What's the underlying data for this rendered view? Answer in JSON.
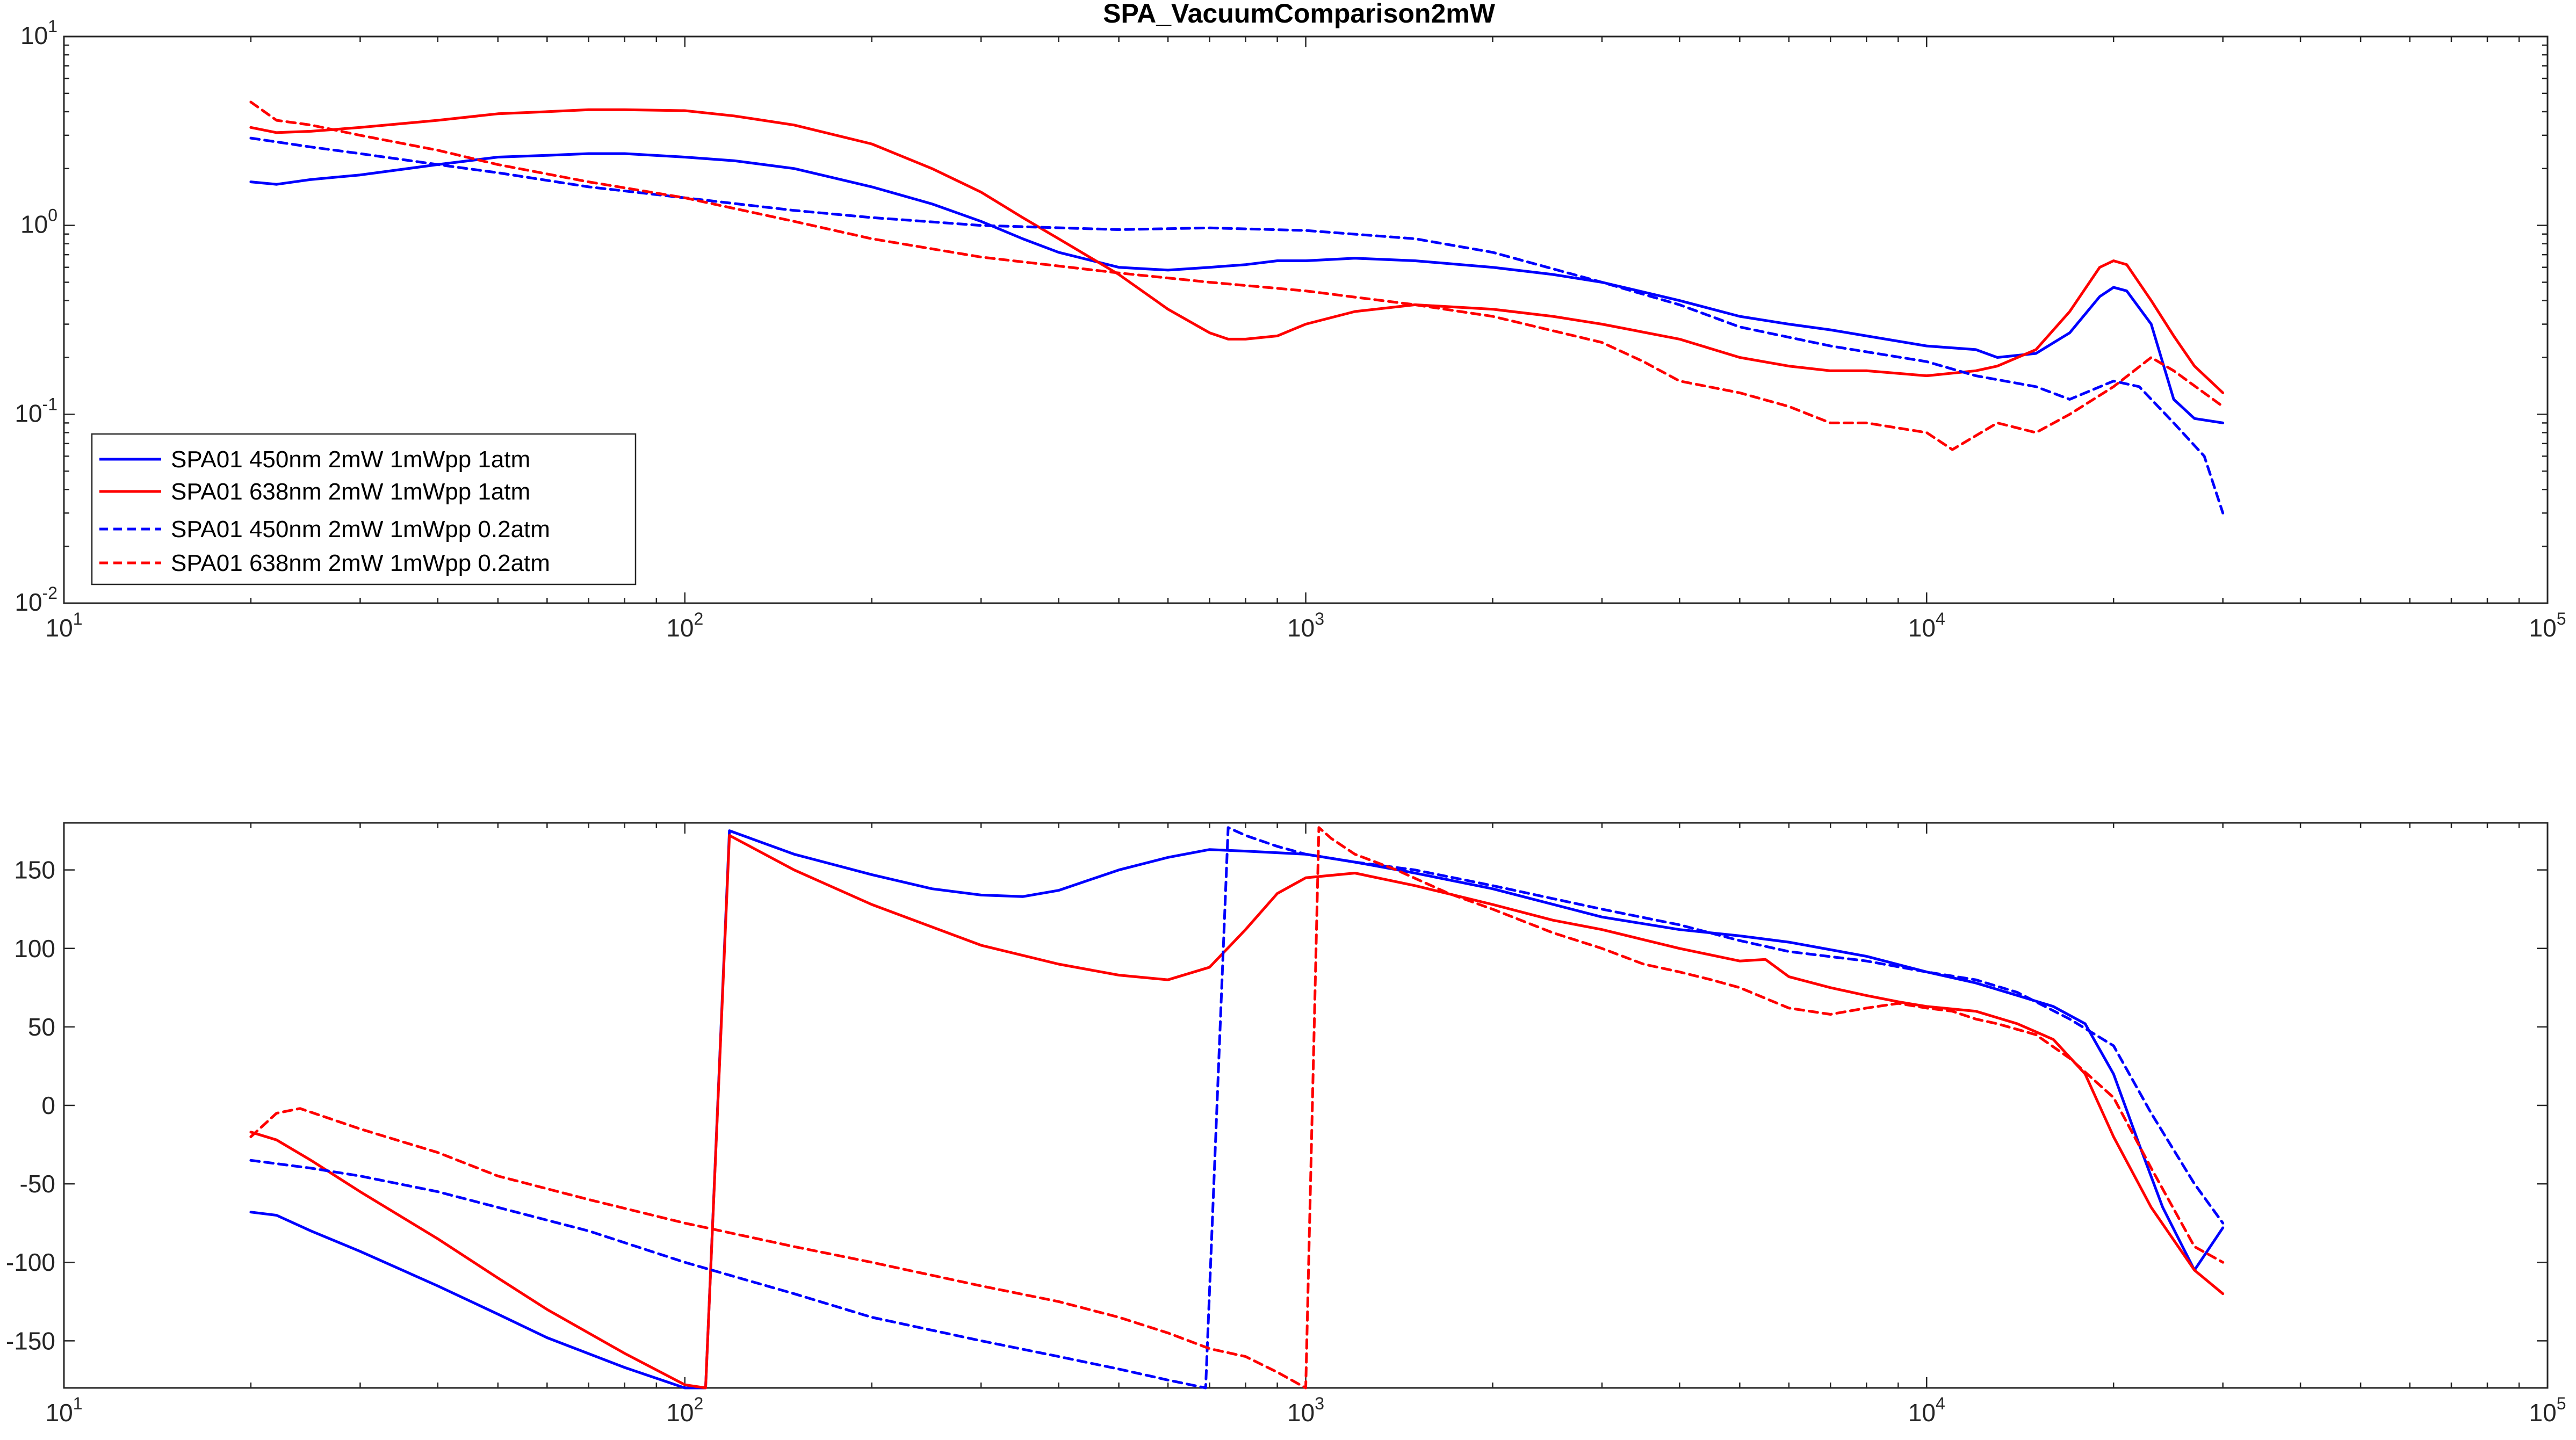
{
  "colors": {
    "blue": "#0000ff",
    "red": "#ff0000",
    "axis": "#262626"
  },
  "chart_data": [
    {
      "type": "line",
      "title": "SPA_VacuumComparison2mW",
      "xlabel": "",
      "ylabel": "",
      "xscale": "log",
      "yscale": "log",
      "xlim": [
        10,
        100000
      ],
      "ylim": [
        0.01,
        10
      ],
      "x_ticks": [
        {
          "base": "10",
          "exp": "1"
        },
        {
          "base": "10",
          "exp": "2"
        },
        {
          "base": "10",
          "exp": "3"
        },
        {
          "base": "10",
          "exp": "4"
        },
        {
          "base": "10",
          "exp": "5"
        }
      ],
      "y_ticks": [
        {
          "base": "10",
          "exp": "-2"
        },
        {
          "base": "10",
          "exp": "-1"
        },
        {
          "base": "10",
          "exp": "0"
        },
        {
          "base": "10",
          "exp": "1"
        }
      ],
      "grid": false,
      "legend_position": "bottom-left",
      "series": [
        {
          "name": "SPA01 450nm 2mW 1mWpp 1atm",
          "color": "#0000ff",
          "style": "solid",
          "x": [
            20,
            22,
            25,
            30,
            40,
            50,
            60,
            70,
            80,
            100,
            120,
            150,
            200,
            250,
            300,
            350,
            400,
            500,
            600,
            700,
            800,
            900,
            1000,
            1200,
            1500,
            2000,
            2500,
            3000,
            4000,
            5000,
            6000,
            7000,
            8000,
            10000,
            12000,
            13000,
            15000,
            17000,
            19000,
            20000,
            21000,
            23000,
            25000,
            27000,
            30000
          ],
          "y": [
            1.7,
            1.65,
            1.75,
            1.85,
            2.1,
            2.3,
            2.35,
            2.4,
            2.4,
            2.3,
            2.2,
            2.0,
            1.6,
            1.3,
            1.05,
            0.85,
            0.72,
            0.6,
            0.58,
            0.6,
            0.62,
            0.65,
            0.65,
            0.67,
            0.65,
            0.6,
            0.55,
            0.5,
            0.4,
            0.33,
            0.3,
            0.28,
            0.26,
            0.23,
            0.22,
            0.2,
            0.21,
            0.27,
            0.42,
            0.47,
            0.45,
            0.3,
            0.12,
            0.095,
            0.09
          ]
        },
        {
          "name": "SPA01 638nm 2mW 1mWpp 1atm",
          "color": "#ff0000",
          "style": "solid",
          "x": [
            20,
            22,
            25,
            30,
            40,
            50,
            60,
            70,
            80,
            100,
            120,
            150,
            200,
            250,
            300,
            350,
            400,
            500,
            600,
            700,
            750,
            800,
            900,
            1000,
            1200,
            1500,
            2000,
            2500,
            3000,
            4000,
            5000,
            6000,
            7000,
            8000,
            10000,
            12000,
            13000,
            15000,
            17000,
            19000,
            20000,
            21000,
            23000,
            25000,
            27000,
            30000
          ],
          "y": [
            3.3,
            3.1,
            3.15,
            3.3,
            3.6,
            3.9,
            4.0,
            4.1,
            4.1,
            4.05,
            3.8,
            3.4,
            2.7,
            2.0,
            1.5,
            1.1,
            0.85,
            0.55,
            0.36,
            0.27,
            0.25,
            0.25,
            0.26,
            0.3,
            0.35,
            0.38,
            0.36,
            0.33,
            0.3,
            0.25,
            0.2,
            0.18,
            0.17,
            0.17,
            0.16,
            0.17,
            0.18,
            0.22,
            0.35,
            0.6,
            0.65,
            0.62,
            0.4,
            0.26,
            0.18,
            0.13
          ]
        },
        {
          "name": "SPA01 450nm 2mW 1mWpp 0.2atm",
          "color": "#0000ff",
          "style": "dashed",
          "x": [
            20,
            25,
            30,
            40,
            50,
            70,
            100,
            150,
            200,
            300,
            500,
            700,
            1000,
            1500,
            2000,
            3000,
            4000,
            5000,
            7000,
            10000,
            12000,
            15000,
            17000,
            20000,
            22000,
            25000,
            28000,
            30000
          ],
          "y": [
            2.9,
            2.6,
            2.4,
            2.1,
            1.9,
            1.6,
            1.4,
            1.2,
            1.1,
            1.0,
            0.95,
            0.97,
            0.94,
            0.85,
            0.72,
            0.5,
            0.38,
            0.29,
            0.23,
            0.19,
            0.16,
            0.14,
            0.12,
            0.15,
            0.14,
            0.09,
            0.06,
            0.03
          ]
        },
        {
          "name": "SPA01 638nm 2mW 1mWpp 0.2atm",
          "color": "#ff0000",
          "style": "dashed",
          "x": [
            20,
            22,
            25,
            30,
            40,
            50,
            70,
            100,
            150,
            200,
            300,
            500,
            700,
            1000,
            1500,
            2000,
            3000,
            3500,
            4000,
            5000,
            6000,
            7000,
            8000,
            10000,
            11000,
            13000,
            15000,
            17000,
            20000,
            23000,
            25000,
            30000
          ],
          "y": [
            4.5,
            3.6,
            3.4,
            3.0,
            2.5,
            2.1,
            1.7,
            1.4,
            1.05,
            0.85,
            0.68,
            0.56,
            0.5,
            0.45,
            0.38,
            0.33,
            0.24,
            0.19,
            0.15,
            0.13,
            0.11,
            0.09,
            0.09,
            0.08,
            0.065,
            0.09,
            0.08,
            0.1,
            0.14,
            0.2,
            0.17,
            0.11
          ]
        }
      ]
    },
    {
      "type": "line",
      "title": "",
      "xlabel": "",
      "ylabel": "",
      "xscale": "log",
      "yscale": "linear",
      "xlim": [
        10,
        100000
      ],
      "ylim": [
        -180,
        180
      ],
      "x_ticks": [
        {
          "base": "10",
          "exp": "1"
        },
        {
          "base": "10",
          "exp": "2"
        },
        {
          "base": "10",
          "exp": "3"
        },
        {
          "base": "10",
          "exp": "4"
        },
        {
          "base": "10",
          "exp": "5"
        }
      ],
      "y_ticks": [
        "-150",
        "-100",
        "-50",
        "0",
        "50",
        "100",
        "150"
      ],
      "y_tick_values": [
        -150,
        -100,
        -50,
        0,
        50,
        100,
        150
      ],
      "grid": false,
      "series": [
        {
          "name": "SPA01 450nm 2mW 1mWpp 1atm",
          "color": "#0000ff",
          "style": "solid",
          "x": [
            20,
            22,
            25,
            30,
            40,
            50,
            60,
            80,
            100,
            108,
            118,
            150,
            200,
            250,
            300,
            350,
            400,
            500,
            600,
            700,
            800,
            1000,
            1200,
            1500,
            2000,
            3000,
            4000,
            5000,
            6000,
            8000,
            10000,
            12000,
            14000,
            16000,
            18000,
            20000,
            22000,
            24000,
            27000,
            30000
          ],
          "y": [
            -68,
            -70,
            -80,
            -93,
            -115,
            -133,
            -148,
            -167,
            -180,
            -180,
            175,
            160,
            147,
            138,
            134,
            133,
            137,
            150,
            158,
            163,
            162,
            160,
            155,
            148,
            138,
            120,
            112,
            108,
            104,
            95,
            85,
            78,
            70,
            63,
            52,
            20,
            -25,
            -65,
            -105,
            -78
          ]
        },
        {
          "name": "SPA01 638nm 2mW 1mWpp 1atm",
          "color": "#ff0000",
          "style": "solid",
          "x": [
            20,
            22,
            25,
            30,
            40,
            50,
            60,
            80,
            100,
            108,
            118,
            150,
            200,
            300,
            400,
            500,
            600,
            700,
            800,
            900,
            1000,
            1200,
            1500,
            2000,
            2500,
            3000,
            4000,
            5000,
            5500,
            6000,
            7000,
            8000,
            9000,
            10000,
            12000,
            14000,
            16000,
            18000,
            20000,
            23000,
            27000,
            30000
          ],
          "y": [
            -17,
            -22,
            -35,
            -55,
            -85,
            -110,
            -130,
            -158,
            -178,
            -180,
            172,
            150,
            128,
            102,
            90,
            83,
            80,
            88,
            112,
            135,
            145,
            148,
            140,
            128,
            118,
            112,
            100,
            92,
            93,
            82,
            75,
            70,
            66,
            63,
            60,
            52,
            42,
            20,
            -20,
            -65,
            -105,
            -120
          ]
        },
        {
          "name": "SPA01 450nm 2mW 1mWpp 0.2atm",
          "color": "#0000ff",
          "style": "dashed",
          "x": [
            20,
            25,
            30,
            40,
            50,
            70,
            100,
            150,
            200,
            300,
            400,
            500,
            600,
            690,
            750,
            800,
            900,
            1000,
            1200,
            1500,
            2000,
            3000,
            4000,
            5000,
            6000,
            8000,
            10000,
            12000,
            14000,
            17000,
            20000,
            23000,
            27000,
            30000
          ],
          "y": [
            -35,
            -40,
            -45,
            -55,
            -65,
            -80,
            -100,
            -120,
            -135,
            -150,
            -160,
            -168,
            -175,
            -180,
            177,
            172,
            165,
            160,
            155,
            150,
            140,
            125,
            115,
            105,
            98,
            92,
            85,
            80,
            72,
            55,
            38,
            -5,
            -50,
            -75
          ]
        },
        {
          "name": "SPA01 638nm 2mW 1mWpp 0.2atm",
          "color": "#ff0000",
          "style": "dashed",
          "x": [
            20,
            22,
            24,
            30,
            40,
            50,
            70,
            100,
            150,
            200,
            300,
            400,
            500,
            600,
            700,
            800,
            900,
            1000,
            1050,
            1100,
            1200,
            1400,
            1700,
            2000,
            2500,
            3000,
            3500,
            4000,
            4500,
            5000,
            6000,
            7000,
            8000,
            9000,
            10000,
            11000,
            12000,
            13000,
            15000,
            17000,
            20000,
            23000,
            27000,
            30000
          ],
          "y": [
            -20,
            -5,
            -2,
            -15,
            -30,
            -45,
            -60,
            -75,
            -90,
            -100,
            -115,
            -125,
            -135,
            -145,
            -155,
            -160,
            -170,
            -180,
            177,
            170,
            160,
            150,
            135,
            125,
            110,
            100,
            90,
            85,
            80,
            75,
            62,
            58,
            62,
            65,
            62,
            60,
            55,
            52,
            45,
            30,
            5,
            -40,
            -90,
            -100
          ]
        }
      ]
    }
  ]
}
